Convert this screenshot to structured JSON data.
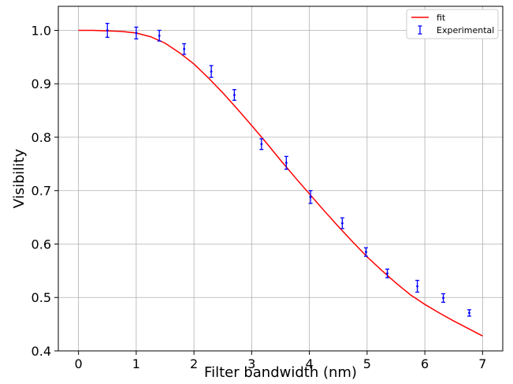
{
  "chart_data": {
    "type": "scatter",
    "title": "",
    "xlabel": "Filter bandwidth (nm)",
    "ylabel": "Visibility",
    "xlim": [
      -0.35,
      7.35
    ],
    "ylim": [
      0.4,
      1.045
    ],
    "xticks": [
      0,
      1,
      2,
      3,
      4,
      5,
      6,
      7
    ],
    "xtick_labels": [
      "0",
      "1",
      "2",
      "3",
      "4",
      "5",
      "6",
      "7"
    ],
    "yticks": [
      0.4,
      0.5,
      0.6,
      0.7,
      0.8,
      0.9,
      1.0
    ],
    "ytick_labels": [
      "0.4",
      "0.5",
      "0.6",
      "0.7",
      "0.8",
      "0.9",
      "1.0"
    ],
    "grid": true,
    "legend_position": "top-right",
    "series": [
      {
        "name": "fit",
        "kind": "line",
        "color": "#ff0000",
        "x": [
          0,
          0.25,
          0.5,
          0.75,
          1.0,
          1.25,
          1.5,
          1.75,
          2.0,
          2.25,
          2.5,
          2.75,
          3.0,
          3.25,
          3.5,
          3.75,
          4.0,
          4.25,
          4.5,
          4.75,
          5.0,
          5.25,
          5.5,
          5.75,
          6.0,
          6.25,
          6.5,
          6.75,
          7.0
        ],
        "y": [
          1.0,
          1.0,
          0.999,
          0.998,
          0.995,
          0.988,
          0.976,
          0.958,
          0.937,
          0.911,
          0.883,
          0.853,
          0.822,
          0.79,
          0.757,
          0.725,
          0.694,
          0.663,
          0.633,
          0.604,
          0.576,
          0.551,
          0.527,
          0.505,
          0.487,
          0.471,
          0.456,
          0.442,
          0.428
        ]
      },
      {
        "name": "Experimental",
        "kind": "errorbar",
        "color": "#0000ff",
        "x": [
          0.5,
          1.0,
          1.4,
          1.83,
          2.3,
          2.7,
          3.17,
          3.6,
          4.02,
          4.57,
          4.98,
          5.35,
          5.87,
          6.32,
          6.77
        ],
        "y": [
          1.0,
          0.995,
          0.99,
          0.965,
          0.923,
          0.879,
          0.787,
          0.752,
          0.688,
          0.639,
          0.585,
          0.545,
          0.521,
          0.499,
          0.471
        ],
        "yerr": [
          0.013,
          0.011,
          0.01,
          0.01,
          0.011,
          0.01,
          0.01,
          0.012,
          0.012,
          0.01,
          0.008,
          0.008,
          0.011,
          0.008,
          0.006
        ]
      }
    ]
  }
}
